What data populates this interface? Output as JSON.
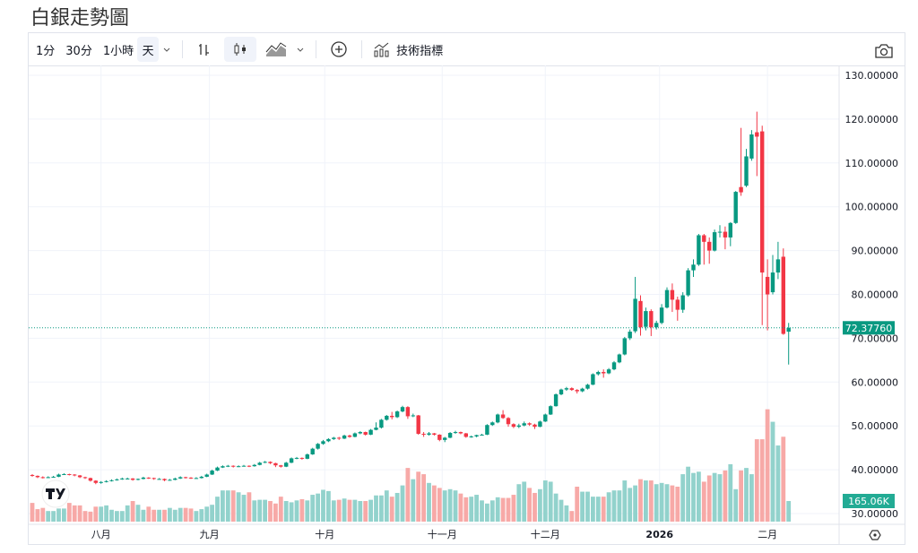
{
  "title": "白銀走勢圖",
  "toolbar": {
    "intervals": [
      "1分",
      "30分",
      "1小時",
      "天"
    ],
    "selected_interval": "天",
    "indicators_label": "技術指標",
    "icons": [
      "chevron-down-icon",
      "bar-chart-icon",
      "candlestick-icon",
      "area-chart-icon",
      "plus-circle-icon",
      "indicators-icon",
      "camera-icon"
    ]
  },
  "colors": {
    "up": "#089981",
    "down": "#f23645",
    "volume_up": "#92d2cc",
    "volume_down": "#f7a9a7",
    "grid": "#f0f3fa"
  },
  "chart_data": {
    "type": "candlestick",
    "title": "",
    "ylim": [
      30,
      130
    ],
    "y_ticks": [
      "130.00000",
      "120.00000",
      "110.00000",
      "100.00000",
      "90.00000",
      "80.00000",
      "70.00000",
      "60.00000",
      "50.00000",
      "40.00000",
      "30.00000"
    ],
    "x_ticks": [
      "八月",
      "九月",
      "十月",
      "十一月",
      "十二月",
      "2026",
      "二月"
    ],
    "last_price_label": "72.37760",
    "last_price": 72.3776,
    "last_volume_label": "165.06K",
    "grid": true,
    "candles_ohlc": [
      [
        38.8,
        39.0,
        38.4,
        38.6
      ],
      [
        38.6,
        38.7,
        38.1,
        38.3
      ],
      [
        38.3,
        38.5,
        38.0,
        38.2
      ],
      [
        38.2,
        38.5,
        38.1,
        38.3
      ],
      [
        38.3,
        38.6,
        38.2,
        38.4
      ],
      [
        38.4,
        39.1,
        38.3,
        38.9
      ],
      [
        38.9,
        39.2,
        38.8,
        39.0
      ],
      [
        39.0,
        39.1,
        38.7,
        38.9
      ],
      [
        38.9,
        39.0,
        38.5,
        38.7
      ],
      [
        38.7,
        38.8,
        38.1,
        38.3
      ],
      [
        38.3,
        38.4,
        37.9,
        38.1
      ],
      [
        38.1,
        38.2,
        37.3,
        37.5
      ],
      [
        37.5,
        37.6,
        36.7,
        37.0
      ],
      [
        37.0,
        37.4,
        36.8,
        37.2
      ],
      [
        37.2,
        37.6,
        37.1,
        37.4
      ],
      [
        37.4,
        37.8,
        37.3,
        37.6
      ],
      [
        37.6,
        38.0,
        37.5,
        37.8
      ],
      [
        37.8,
        38.2,
        37.7,
        38.0
      ],
      [
        38.0,
        38.2,
        37.8,
        38.0
      ],
      [
        38.0,
        38.1,
        37.5,
        37.7
      ],
      [
        37.7,
        38.0,
        37.6,
        37.9
      ],
      [
        37.9,
        38.4,
        37.8,
        38.2
      ],
      [
        38.2,
        38.3,
        37.9,
        38.1
      ],
      [
        38.1,
        38.2,
        37.7,
        37.9
      ],
      [
        37.9,
        38.1,
        37.8,
        37.9
      ],
      [
        37.9,
        38.0,
        37.4,
        37.6
      ],
      [
        37.6,
        37.9,
        37.5,
        37.7
      ],
      [
        37.7,
        38.2,
        37.6,
        38.0
      ],
      [
        38.0,
        38.5,
        37.9,
        38.3
      ],
      [
        38.3,
        38.4,
        38.0,
        38.2
      ],
      [
        38.2,
        38.3,
        37.9,
        38.1
      ],
      [
        38.1,
        38.3,
        38.0,
        38.1
      ],
      [
        38.1,
        38.6,
        38.0,
        38.4
      ],
      [
        38.4,
        39.1,
        38.3,
        38.9
      ],
      [
        38.9,
        40.0,
        38.8,
        39.8
      ],
      [
        39.8,
        40.7,
        39.7,
        40.5
      ],
      [
        40.5,
        41.0,
        40.4,
        40.8
      ],
      [
        40.8,
        41.1,
        40.6,
        40.9
      ],
      [
        40.9,
        41.0,
        40.5,
        40.7
      ],
      [
        40.7,
        41.0,
        40.6,
        40.8
      ],
      [
        40.8,
        41.1,
        40.7,
        40.9
      ],
      [
        40.9,
        41.0,
        40.6,
        40.8
      ],
      [
        40.8,
        41.3,
        40.7,
        41.1
      ],
      [
        41.1,
        41.8,
        41.0,
        41.6
      ],
      [
        41.6,
        42.0,
        41.5,
        41.8
      ],
      [
        41.8,
        41.9,
        41.3,
        41.5
      ],
      [
        41.5,
        41.6,
        40.6,
        41.0
      ],
      [
        41.0,
        41.1,
        40.5,
        40.7
      ],
      [
        40.7,
        41.8,
        40.6,
        41.6
      ],
      [
        41.6,
        42.8,
        41.5,
        42.6
      ],
      [
        42.6,
        42.9,
        42.4,
        42.7
      ],
      [
        42.7,
        42.8,
        42.3,
        42.5
      ],
      [
        42.5,
        43.7,
        42.4,
        43.5
      ],
      [
        43.5,
        45.0,
        43.4,
        44.8
      ],
      [
        44.8,
        46.1,
        44.6,
        45.9
      ],
      [
        45.9,
        46.8,
        45.7,
        46.5
      ],
      [
        46.5,
        47.2,
        46.3,
        47.0
      ],
      [
        47.0,
        47.5,
        46.8,
        47.3
      ],
      [
        47.3,
        47.5,
        46.8,
        47.1
      ],
      [
        47.1,
        48.0,
        47.0,
        47.8
      ],
      [
        47.8,
        48.0,
        47.3,
        47.5
      ],
      [
        47.5,
        48.5,
        47.4,
        48.3
      ],
      [
        48.3,
        48.8,
        48.1,
        48.6
      ],
      [
        48.6,
        48.7,
        47.8,
        48.0
      ],
      [
        48.0,
        49.3,
        47.9,
        49.1
      ],
      [
        49.1,
        50.8,
        49.0,
        49.6
      ],
      [
        49.6,
        51.6,
        49.4,
        51.4
      ],
      [
        51.4,
        52.5,
        51.2,
        52.3
      ],
      [
        52.3,
        53.2,
        51.5,
        52.0
      ],
      [
        52.0,
        53.5,
        51.8,
        53.3
      ],
      [
        53.3,
        54.6,
        53.1,
        54.3
      ],
      [
        54.3,
        54.5,
        51.6,
        52.2
      ],
      [
        52.2,
        52.8,
        52.0,
        52.4
      ],
      [
        52.4,
        52.5,
        48.0,
        48.2
      ],
      [
        48.2,
        48.6,
        47.5,
        48.0
      ],
      [
        48.0,
        48.6,
        47.8,
        48.3
      ],
      [
        48.3,
        48.4,
        47.8,
        48.0
      ],
      [
        48.0,
        48.1,
        46.5,
        46.8
      ],
      [
        46.8,
        47.5,
        46.3,
        47.3
      ],
      [
        47.3,
        48.6,
        47.2,
        48.4
      ],
      [
        48.4,
        48.9,
        48.2,
        48.6
      ],
      [
        48.6,
        48.7,
        48.1,
        48.3
      ],
      [
        48.3,
        48.4,
        47.3,
        47.5
      ],
      [
        47.5,
        47.8,
        47.3,
        47.6
      ],
      [
        47.6,
        48.0,
        47.4,
        47.9
      ],
      [
        47.9,
        48.2,
        47.8,
        48.0
      ],
      [
        48.0,
        50.4,
        47.9,
        50.2
      ],
      [
        50.2,
        51.0,
        50.0,
        50.8
      ],
      [
        50.8,
        52.8,
        50.6,
        52.6
      ],
      [
        52.6,
        53.6,
        51.6,
        51.8
      ],
      [
        51.8,
        52.0,
        49.8,
        50.4
      ],
      [
        50.4,
        50.6,
        49.5,
        49.8
      ],
      [
        49.8,
        50.5,
        49.5,
        50.1
      ],
      [
        50.1,
        51.0,
        49.9,
        50.6
      ],
      [
        50.6,
        50.8,
        50.0,
        50.3
      ],
      [
        50.3,
        50.5,
        49.3,
        49.8
      ],
      [
        49.8,
        51.2,
        49.7,
        51.0
      ],
      [
        51.0,
        52.8,
        50.9,
        52.6
      ],
      [
        52.6,
        54.7,
        52.5,
        54.5
      ],
      [
        54.5,
        57.4,
        54.4,
        57.2
      ],
      [
        57.2,
        58.5,
        57.0,
        58.3
      ],
      [
        58.3,
        58.9,
        58.0,
        58.6
      ],
      [
        58.6,
        58.8,
        58.0,
        58.2
      ],
      [
        58.2,
        58.4,
        57.4,
        57.9
      ],
      [
        57.9,
        58.7,
        57.7,
        58.5
      ],
      [
        58.5,
        59.6,
        58.3,
        59.4
      ],
      [
        59.4,
        62.0,
        59.3,
        61.8
      ],
      [
        61.8,
        62.6,
        61.5,
        62.3
      ],
      [
        62.3,
        62.9,
        61.0,
        62.0
      ],
      [
        62.0,
        63.2,
        61.8,
        62.9
      ],
      [
        62.9,
        64.8,
        62.7,
        64.5
      ],
      [
        64.5,
        66.5,
        64.3,
        66.3
      ],
      [
        66.3,
        70.3,
        66.1,
        70.0
      ],
      [
        70.0,
        72.0,
        69.6,
        71.5
      ],
      [
        71.6,
        84.0,
        71.2,
        79.0
      ],
      [
        78.5,
        79.8,
        70.6,
        72.5
      ],
      [
        72.6,
        77.0,
        71.8,
        76.2
      ],
      [
        76.2,
        76.6,
        70.5,
        72.5
      ],
      [
        72.5,
        74.0,
        72.0,
        73.5
      ],
      [
        73.5,
        77.8,
        73.2,
        77.0
      ],
      [
        77.0,
        81.6,
        76.8,
        81.0
      ],
      [
        81.0,
        82.5,
        76.0,
        78.8
      ],
      [
        78.8,
        79.5,
        74.0,
        76.5
      ],
      [
        76.5,
        80.5,
        75.8,
        79.8
      ],
      [
        79.8,
        86.0,
        79.5,
        85.5
      ],
      [
        85.5,
        88.0,
        84.0,
        86.8
      ],
      [
        86.8,
        93.8,
        86.5,
        93.5
      ],
      [
        93.5,
        93.8,
        86.8,
        92.0
      ],
      [
        92.0,
        93.0,
        87.0,
        90.0
      ],
      [
        90.0,
        94.8,
        89.8,
        94.2
      ],
      [
        94.2,
        95.8,
        93.0,
        94.3
      ],
      [
        94.3,
        95.5,
        90.3,
        93.0
      ],
      [
        93.0,
        96.5,
        91.0,
        96.3
      ],
      [
        96.3,
        103.6,
        96.1,
        103.4
      ],
      [
        104.5,
        118.0,
        102.5,
        103.3
      ],
      [
        104.8,
        113.2,
        104.5,
        111.5
      ],
      [
        111.0,
        117.5,
        110.5,
        116.5
      ],
      [
        117.0,
        121.7,
        107.0,
        116.0
      ],
      [
        117.2,
        118.5,
        73.0,
        85.0
      ],
      [
        84.0,
        88.0,
        71.8,
        80.0
      ],
      [
        80.5,
        89.0,
        80.0,
        85.0
      ],
      [
        85.0,
        92.0,
        83.5,
        88.0
      ],
      [
        88.6,
        90.5,
        70.8,
        71.0
      ],
      [
        71.5,
        73.5,
        64.0,
        72.3776
      ]
    ],
    "volume_k": [
      150,
      100,
      110,
      85,
      85,
      105,
      105,
      150,
      130,
      130,
      85,
      80,
      120,
      120,
      130,
      95,
      85,
      85,
      130,
      165,
      135,
      95,
      120,
      95,
      95,
      95,
      110,
      95,
      110,
      110,
      105,
      85,
      100,
      120,
      135,
      200,
      250,
      250,
      250,
      235,
      215,
      235,
      170,
      175,
      175,
      165,
      145,
      200,
      165,
      155,
      170,
      180,
      170,
      215,
      225,
      255,
      245,
      170,
      175,
      185,
      175,
      175,
      165,
      165,
      175,
      210,
      210,
      250,
      200,
      230,
      290,
      430,
      340,
      400,
      380,
      310,
      290,
      270,
      250,
      260,
      250,
      225,
      195,
      200,
      215,
      170,
      145,
      170,
      195,
      190,
      190,
      215,
      300,
      320,
      270,
      230,
      260,
      330,
      320,
      225,
      175,
      130,
      85,
      280,
      240,
      240,
      200,
      200,
      200,
      235,
      250,
      250,
      330,
      270,
      290,
      340,
      330,
      330,
      300,
      310,
      300,
      290,
      280,
      380,
      440,
      390,
      400,
      320,
      370,
      390,
      380,
      410,
      460,
      260,
      410,
      430,
      380,
      660,
      660,
      900,
      800,
      610,
      680,
      165.06
    ]
  }
}
